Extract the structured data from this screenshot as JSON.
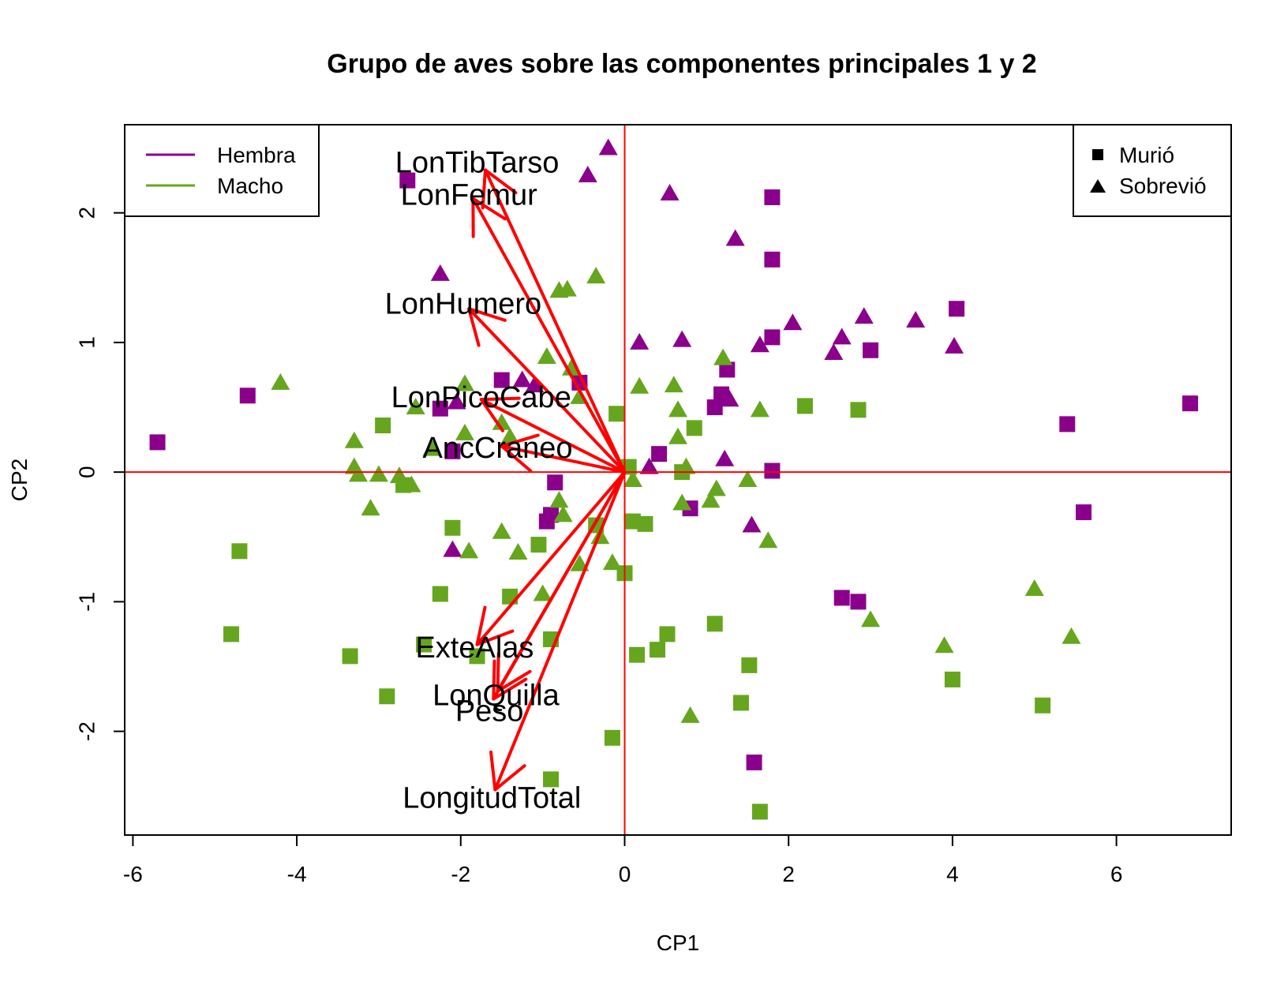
{
  "chart_data": {
    "type": "scatter",
    "title": "Grupo de aves sobre las componentes principales 1 y 2",
    "xlabel": "CP1",
    "ylabel": "CP2",
    "xlim": [
      -6.1,
      7.4
    ],
    "ylim": [
      -2.8,
      2.68
    ],
    "xticks": [
      -6,
      -4,
      -2,
      0,
      2,
      4,
      6
    ],
    "yticks": [
      -2,
      -1,
      0,
      1,
      2
    ],
    "reference_lines": {
      "x": 0,
      "y": 0,
      "color": "#ff0000"
    },
    "colors": {
      "Hembra": "#8b008b",
      "Macho": "#66a61e",
      "arrows": "#ff0000"
    },
    "legend_color": {
      "placement": "top-left",
      "items": [
        {
          "label": "Hembra",
          "color": "#8b008b"
        },
        {
          "label": "Macho",
          "color": "#66a61e"
        }
      ]
    },
    "legend_shape": {
      "placement": "top-right",
      "items": [
        {
          "label": "Murió",
          "shape": "square"
        },
        {
          "label": "Sobrevió",
          "shape": "triangle"
        }
      ]
    },
    "points": [
      {
        "x": -5.7,
        "y": 0.23,
        "sex": "Hembra",
        "shape": "square"
      },
      {
        "x": -4.6,
        "y": 0.59,
        "sex": "Hembra",
        "shape": "square"
      },
      {
        "x": -2.65,
        "y": 2.25,
        "sex": "Hembra",
        "shape": "square"
      },
      {
        "x": -2.25,
        "y": 0.49,
        "sex": "Hembra",
        "shape": "square"
      },
      {
        "x": -2.1,
        "y": 0.16,
        "sex": "Hembra",
        "shape": "square"
      },
      {
        "x": -1.5,
        "y": 0.71,
        "sex": "Hembra",
        "shape": "square"
      },
      {
        "x": -0.55,
        "y": 0.69,
        "sex": "Hembra",
        "shape": "square"
      },
      {
        "x": -0.85,
        "y": -0.08,
        "sex": "Hembra",
        "shape": "square"
      },
      {
        "x": -0.95,
        "y": -0.38,
        "sex": "Hembra",
        "shape": "square"
      },
      {
        "x": -0.9,
        "y": -0.33,
        "sex": "Hembra",
        "shape": "square"
      },
      {
        "x": 0.42,
        "y": 0.14,
        "sex": "Hembra",
        "shape": "square"
      },
      {
        "x": 0.8,
        "y": -0.28,
        "sex": "Hembra",
        "shape": "square"
      },
      {
        "x": 1.1,
        "y": 0.5,
        "sex": "Hembra",
        "shape": "square"
      },
      {
        "x": 1.18,
        "y": 0.6,
        "sex": "Hembra",
        "shape": "square"
      },
      {
        "x": 1.25,
        "y": 0.79,
        "sex": "Hembra",
        "shape": "square"
      },
      {
        "x": 1.8,
        "y": 2.12,
        "sex": "Hembra",
        "shape": "square"
      },
      {
        "x": 1.8,
        "y": 1.64,
        "sex": "Hembra",
        "shape": "square"
      },
      {
        "x": 1.8,
        "y": 1.04,
        "sex": "Hembra",
        "shape": "square"
      },
      {
        "x": 1.8,
        "y": 0.01,
        "sex": "Hembra",
        "shape": "square"
      },
      {
        "x": 3.0,
        "y": 0.94,
        "sex": "Hembra",
        "shape": "square"
      },
      {
        "x": 4.05,
        "y": 1.26,
        "sex": "Hembra",
        "shape": "square"
      },
      {
        "x": 2.65,
        "y": -0.97,
        "sex": "Hembra",
        "shape": "square"
      },
      {
        "x": 2.85,
        "y": -1.0,
        "sex": "Hembra",
        "shape": "square"
      },
      {
        "x": 1.58,
        "y": -2.24,
        "sex": "Hembra",
        "shape": "square"
      },
      {
        "x": 5.4,
        "y": 0.37,
        "sex": "Hembra",
        "shape": "square"
      },
      {
        "x": 5.6,
        "y": -0.31,
        "sex": "Hembra",
        "shape": "square"
      },
      {
        "x": 6.9,
        "y": 0.53,
        "sex": "Hembra",
        "shape": "square"
      },
      {
        "x": -0.2,
        "y": 2.5,
        "sex": "Hembra",
        "shape": "triangle"
      },
      {
        "x": -0.45,
        "y": 2.29,
        "sex": "Hembra",
        "shape": "triangle"
      },
      {
        "x": 0.55,
        "y": 2.15,
        "sex": "Hembra",
        "shape": "triangle"
      },
      {
        "x": 1.35,
        "y": 1.8,
        "sex": "Hembra",
        "shape": "triangle"
      },
      {
        "x": -2.25,
        "y": 1.53,
        "sex": "Hembra",
        "shape": "triangle"
      },
      {
        "x": 0.18,
        "y": 1.0,
        "sex": "Hembra",
        "shape": "triangle"
      },
      {
        "x": 0.7,
        "y": 1.02,
        "sex": "Hembra",
        "shape": "triangle"
      },
      {
        "x": 1.65,
        "y": 0.98,
        "sex": "Hembra",
        "shape": "triangle"
      },
      {
        "x": 2.05,
        "y": 1.15,
        "sex": "Hembra",
        "shape": "triangle"
      },
      {
        "x": 2.65,
        "y": 1.04,
        "sex": "Hembra",
        "shape": "triangle"
      },
      {
        "x": 2.55,
        "y": 0.92,
        "sex": "Hembra",
        "shape": "triangle"
      },
      {
        "x": 2.92,
        "y": 1.2,
        "sex": "Hembra",
        "shape": "triangle"
      },
      {
        "x": 3.55,
        "y": 1.17,
        "sex": "Hembra",
        "shape": "triangle"
      },
      {
        "x": 4.02,
        "y": 0.97,
        "sex": "Hembra",
        "shape": "triangle"
      },
      {
        "x": -1.25,
        "y": 0.71,
        "sex": "Hembra",
        "shape": "triangle"
      },
      {
        "x": -1.1,
        "y": 0.67,
        "sex": "Hembra",
        "shape": "triangle"
      },
      {
        "x": -2.05,
        "y": 0.54,
        "sex": "Hembra",
        "shape": "triangle"
      },
      {
        "x": 1.28,
        "y": 0.56,
        "sex": "Hembra",
        "shape": "triangle"
      },
      {
        "x": 1.22,
        "y": 0.1,
        "sex": "Hembra",
        "shape": "triangle"
      },
      {
        "x": 0.3,
        "y": 0.04,
        "sex": "Hembra",
        "shape": "triangle"
      },
      {
        "x": 1.55,
        "y": -0.41,
        "sex": "Hembra",
        "shape": "triangle"
      },
      {
        "x": -2.1,
        "y": -0.6,
        "sex": "Hembra",
        "shape": "triangle"
      },
      {
        "x": -4.7,
        "y": -0.61,
        "sex": "Macho",
        "shape": "square"
      },
      {
        "x": -4.8,
        "y": -1.25,
        "sex": "Macho",
        "shape": "square"
      },
      {
        "x": -3.35,
        "y": -1.42,
        "sex": "Macho",
        "shape": "square"
      },
      {
        "x": -2.9,
        "y": -1.73,
        "sex": "Macho",
        "shape": "square"
      },
      {
        "x": -2.95,
        "y": 0.36,
        "sex": "Macho",
        "shape": "square"
      },
      {
        "x": -2.7,
        "y": -0.1,
        "sex": "Macho",
        "shape": "square"
      },
      {
        "x": -2.25,
        "y": -0.94,
        "sex": "Macho",
        "shape": "square"
      },
      {
        "x": -2.1,
        "y": -0.43,
        "sex": "Macho",
        "shape": "square"
      },
      {
        "x": -2.45,
        "y": -1.33,
        "sex": "Macho",
        "shape": "square"
      },
      {
        "x": -1.8,
        "y": -1.42,
        "sex": "Macho",
        "shape": "square"
      },
      {
        "x": -1.4,
        "y": -0.96,
        "sex": "Macho",
        "shape": "square"
      },
      {
        "x": -1.05,
        "y": -0.56,
        "sex": "Macho",
        "shape": "square"
      },
      {
        "x": -0.9,
        "y": -1.29,
        "sex": "Macho",
        "shape": "square"
      },
      {
        "x": -0.9,
        "y": -2.37,
        "sex": "Macho",
        "shape": "square"
      },
      {
        "x": -0.35,
        "y": -0.41,
        "sex": "Macho",
        "shape": "square"
      },
      {
        "x": -0.15,
        "y": -2.05,
        "sex": "Macho",
        "shape": "square"
      },
      {
        "x": -0.1,
        "y": 0.45,
        "sex": "Macho",
        "shape": "square"
      },
      {
        "x": 0.05,
        "y": 0.04,
        "sex": "Macho",
        "shape": "square"
      },
      {
        "x": 0.1,
        "y": -0.38,
        "sex": "Macho",
        "shape": "square"
      },
      {
        "x": 0.25,
        "y": -0.4,
        "sex": "Macho",
        "shape": "square"
      },
      {
        "x": 0.0,
        "y": -0.78,
        "sex": "Macho",
        "shape": "square"
      },
      {
        "x": 0.15,
        "y": -1.41,
        "sex": "Macho",
        "shape": "square"
      },
      {
        "x": 0.4,
        "y": -1.37,
        "sex": "Macho",
        "shape": "square"
      },
      {
        "x": 0.52,
        "y": -1.25,
        "sex": "Macho",
        "shape": "square"
      },
      {
        "x": 0.7,
        "y": 0.0,
        "sex": "Macho",
        "shape": "square"
      },
      {
        "x": 0.85,
        "y": 0.34,
        "sex": "Macho",
        "shape": "square"
      },
      {
        "x": 1.1,
        "y": -1.17,
        "sex": "Macho",
        "shape": "square"
      },
      {
        "x": 1.42,
        "y": -1.78,
        "sex": "Macho",
        "shape": "square"
      },
      {
        "x": 1.52,
        "y": -1.49,
        "sex": "Macho",
        "shape": "square"
      },
      {
        "x": 1.65,
        "y": -2.62,
        "sex": "Macho",
        "shape": "square"
      },
      {
        "x": 2.2,
        "y": 0.51,
        "sex": "Macho",
        "shape": "square"
      },
      {
        "x": 2.85,
        "y": 0.48,
        "sex": "Macho",
        "shape": "square"
      },
      {
        "x": 4.0,
        "y": -1.6,
        "sex": "Macho",
        "shape": "square"
      },
      {
        "x": 5.1,
        "y": -1.8,
        "sex": "Macho",
        "shape": "square"
      },
      {
        "x": -4.2,
        "y": 0.69,
        "sex": "Macho",
        "shape": "triangle"
      },
      {
        "x": -3.3,
        "y": 0.24,
        "sex": "Macho",
        "shape": "triangle"
      },
      {
        "x": -3.3,
        "y": 0.04,
        "sex": "Macho",
        "shape": "triangle"
      },
      {
        "x": -3.25,
        "y": -0.02,
        "sex": "Macho",
        "shape": "triangle"
      },
      {
        "x": -3.0,
        "y": -0.02,
        "sex": "Macho",
        "shape": "triangle"
      },
      {
        "x": -2.75,
        "y": -0.03,
        "sex": "Macho",
        "shape": "triangle"
      },
      {
        "x": -2.6,
        "y": -0.1,
        "sex": "Macho",
        "shape": "triangle"
      },
      {
        "x": -3.1,
        "y": -0.28,
        "sex": "Macho",
        "shape": "triangle"
      },
      {
        "x": -2.55,
        "y": 0.5,
        "sex": "Macho",
        "shape": "triangle"
      },
      {
        "x": -1.95,
        "y": 0.68,
        "sex": "Macho",
        "shape": "triangle"
      },
      {
        "x": -1.95,
        "y": 0.3,
        "sex": "Macho",
        "shape": "triangle"
      },
      {
        "x": -1.5,
        "y": 0.38,
        "sex": "Macho",
        "shape": "triangle"
      },
      {
        "x": -1.4,
        "y": 0.27,
        "sex": "Macho",
        "shape": "triangle"
      },
      {
        "x": -2.35,
        "y": 0.18,
        "sex": "Macho",
        "shape": "triangle"
      },
      {
        "x": -0.95,
        "y": 0.89,
        "sex": "Macho",
        "shape": "triangle"
      },
      {
        "x": -0.8,
        "y": 1.4,
        "sex": "Macho",
        "shape": "triangle"
      },
      {
        "x": -0.7,
        "y": 1.41,
        "sex": "Macho",
        "shape": "triangle"
      },
      {
        "x": -0.35,
        "y": 1.51,
        "sex": "Macho",
        "shape": "triangle"
      },
      {
        "x": -0.65,
        "y": 0.8,
        "sex": "Macho",
        "shape": "triangle"
      },
      {
        "x": -0.55,
        "y": 0.58,
        "sex": "Macho",
        "shape": "triangle"
      },
      {
        "x": 0.18,
        "y": 0.66,
        "sex": "Macho",
        "shape": "triangle"
      },
      {
        "x": 0.6,
        "y": 0.67,
        "sex": "Macho",
        "shape": "triangle"
      },
      {
        "x": 0.65,
        "y": 0.48,
        "sex": "Macho",
        "shape": "triangle"
      },
      {
        "x": 0.65,
        "y": 0.27,
        "sex": "Macho",
        "shape": "triangle"
      },
      {
        "x": 0.75,
        "y": 0.04,
        "sex": "Macho",
        "shape": "triangle"
      },
      {
        "x": 1.2,
        "y": 0.88,
        "sex": "Macho",
        "shape": "triangle"
      },
      {
        "x": 1.65,
        "y": 0.48,
        "sex": "Macho",
        "shape": "triangle"
      },
      {
        "x": 0.1,
        "y": -0.06,
        "sex": "Macho",
        "shape": "triangle"
      },
      {
        "x": 0.7,
        "y": -0.24,
        "sex": "Macho",
        "shape": "triangle"
      },
      {
        "x": 1.12,
        "y": -0.13,
        "sex": "Macho",
        "shape": "triangle"
      },
      {
        "x": 1.05,
        "y": -0.22,
        "sex": "Macho",
        "shape": "triangle"
      },
      {
        "x": 1.5,
        "y": -0.06,
        "sex": "Macho",
        "shape": "triangle"
      },
      {
        "x": 1.75,
        "y": -0.53,
        "sex": "Macho",
        "shape": "triangle"
      },
      {
        "x": -0.8,
        "y": -0.22,
        "sex": "Macho",
        "shape": "triangle"
      },
      {
        "x": -0.75,
        "y": -0.33,
        "sex": "Macho",
        "shape": "triangle"
      },
      {
        "x": -1.5,
        "y": -0.46,
        "sex": "Macho",
        "shape": "triangle"
      },
      {
        "x": -1.9,
        "y": -0.61,
        "sex": "Macho",
        "shape": "triangle"
      },
      {
        "x": -1.3,
        "y": -0.62,
        "sex": "Macho",
        "shape": "triangle"
      },
      {
        "x": -0.3,
        "y": -0.5,
        "sex": "Macho",
        "shape": "triangle"
      },
      {
        "x": -0.55,
        "y": -0.71,
        "sex": "Macho",
        "shape": "triangle"
      },
      {
        "x": -0.15,
        "y": -0.7,
        "sex": "Macho",
        "shape": "triangle"
      },
      {
        "x": -1.0,
        "y": -0.94,
        "sex": "Macho",
        "shape": "triangle"
      },
      {
        "x": 0.8,
        "y": -1.88,
        "sex": "Macho",
        "shape": "triangle"
      },
      {
        "x": 3.0,
        "y": -1.14,
        "sex": "Macho",
        "shape": "triangle"
      },
      {
        "x": 3.9,
        "y": -1.34,
        "sex": "Macho",
        "shape": "triangle"
      },
      {
        "x": 5.0,
        "y": -0.9,
        "sex": "Macho",
        "shape": "triangle"
      },
      {
        "x": 5.45,
        "y": -1.27,
        "sex": "Macho",
        "shape": "triangle"
      }
    ],
    "vectors": [
      {
        "label": "LonTibTarso",
        "x": -1.7,
        "y": 2.33,
        "label_x": -1.8,
        "label_y": 2.39
      },
      {
        "label": "LonFemur",
        "x": -1.85,
        "y": 2.11,
        "label_x": -1.9,
        "label_y": 2.14
      },
      {
        "label": "LonHumero",
        "x": -1.9,
        "y": 1.26,
        "label_x": -1.97,
        "label_y": 1.3
      },
      {
        "label": "LonPicoCabe",
        "x": -1.75,
        "y": 0.56,
        "label_x": -1.75,
        "label_y": 0.58
      },
      {
        "label": "AncCraneo",
        "x": -1.5,
        "y": 0.2,
        "label_x": -1.55,
        "label_y": 0.19
      },
      {
        "label": "ExteAlas",
        "x": -1.8,
        "y": -1.33,
        "label_x": -1.83,
        "label_y": -1.35
      },
      {
        "label": "LonQuilla",
        "x": -1.55,
        "y": -1.69,
        "label_x": -1.57,
        "label_y": -1.72
      },
      {
        "label": "Peso",
        "x": -1.6,
        "y": -1.75,
        "label_x": -1.65,
        "label_y": -1.84
      },
      {
        "label": "LongitudTotal",
        "x": -1.58,
        "y": -2.45,
        "label_x": -1.62,
        "label_y": -2.51
      }
    ]
  }
}
